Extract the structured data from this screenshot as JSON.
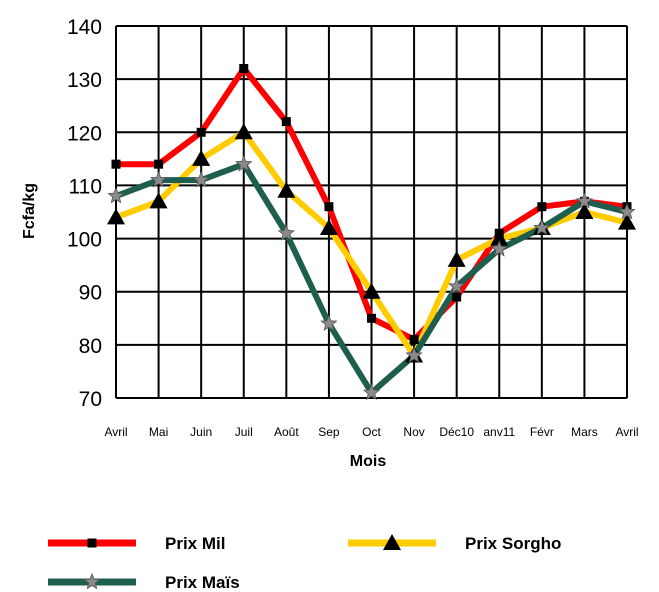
{
  "chart_data": {
    "type": "line",
    "title": "",
    "xlabel": "Mois",
    "ylabel": "Fcfa/kg",
    "categories": [
      "Avril",
      "Mai",
      "Juin",
      "Juil",
      "Août",
      "Sep",
      "Oct",
      "Nov",
      "Déc10",
      "Janv11",
      "Févr",
      "Mars",
      "Avril"
    ],
    "category_labels": [
      "Avril",
      "Mai",
      "Juin",
      "Juil",
      "Août",
      "Sep",
      "Oct",
      "Nov",
      "Déc10",
      "anv11",
      "Févr",
      "Mars",
      "Avril"
    ],
    "ylim": [
      70,
      140
    ],
    "yticks": [
      70,
      80,
      90,
      100,
      110,
      120,
      130,
      140
    ],
    "grid": true,
    "legend_position": "bottom",
    "series": [
      {
        "name": "Prix Mil",
        "color": "#ff0000",
        "marker": "square",
        "values": [
          114,
          114,
          120,
          132,
          122,
          106,
          85,
          81,
          89,
          101,
          106,
          107,
          106
        ]
      },
      {
        "name": "Prix Sorgho",
        "color": "#ffcc00",
        "marker": "triangle",
        "values": [
          104,
          107,
          115,
          120,
          109,
          102,
          90,
          78,
          96,
          100,
          102,
          105,
          103
        ]
      },
      {
        "name": "Prix Maïs",
        "color": "#1e5e4e",
        "marker": "star",
        "values": [
          108,
          111,
          111,
          114,
          101,
          84,
          71,
          78,
          91,
          98,
          102,
          107,
          105
        ]
      }
    ]
  }
}
